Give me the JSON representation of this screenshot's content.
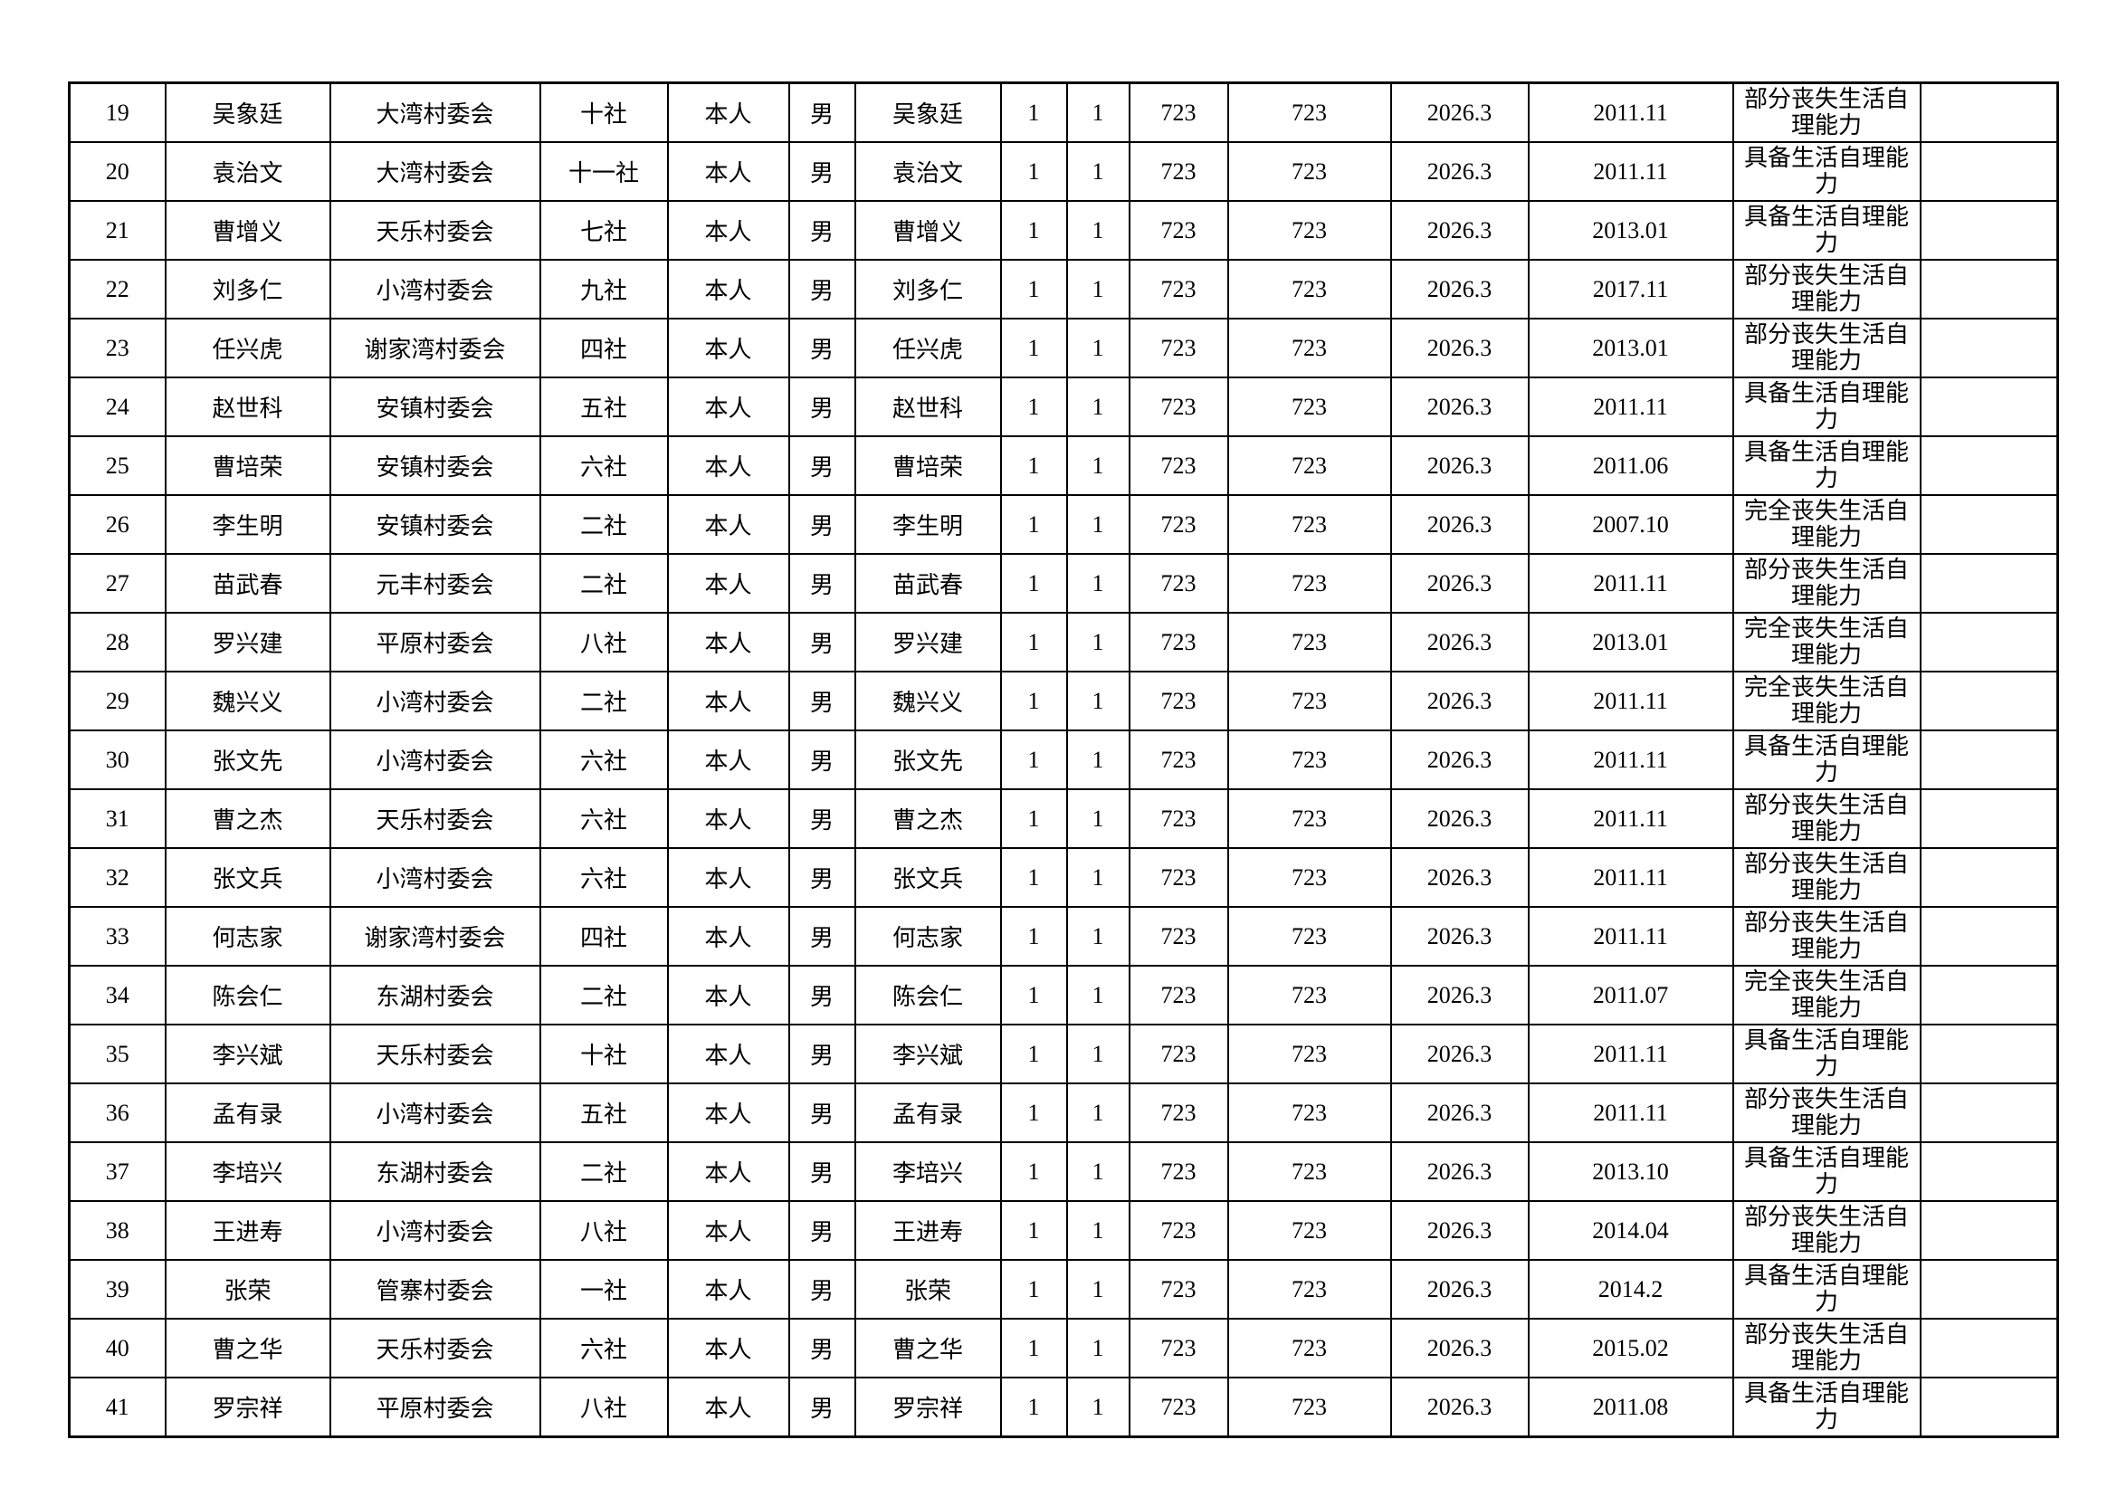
{
  "table": {
    "rows": [
      [
        "19",
        "吴象廷",
        "大湾村委会",
        "十社",
        "本人",
        "男",
        "吴象廷",
        "1",
        "1",
        "723",
        "723",
        "2026.3",
        "2011.11",
        "部分丧失生活自理能力"
      ],
      [
        "20",
        "袁治文",
        "大湾村委会",
        "十一社",
        "本人",
        "男",
        "袁治文",
        "1",
        "1",
        "723",
        "723",
        "2026.3",
        "2011.11",
        "具备生活自理能力"
      ],
      [
        "21",
        "曹增义",
        "天乐村委会",
        "七社",
        "本人",
        "男",
        "曹增义",
        "1",
        "1",
        "723",
        "723",
        "2026.3",
        "2013.01",
        "具备生活自理能力"
      ],
      [
        "22",
        "刘多仁",
        "小湾村委会",
        "九社",
        "本人",
        "男",
        "刘多仁",
        "1",
        "1",
        "723",
        "723",
        "2026.3",
        "2017.11",
        "部分丧失生活自理能力"
      ],
      [
        "23",
        "任兴虎",
        "谢家湾村委会",
        "四社",
        "本人",
        "男",
        "任兴虎",
        "1",
        "1",
        "723",
        "723",
        "2026.3",
        "2013.01",
        "部分丧失生活自理能力"
      ],
      [
        "24",
        "赵世科",
        "安镇村委会",
        "五社",
        "本人",
        "男",
        "赵世科",
        "1",
        "1",
        "723",
        "723",
        "2026.3",
        "2011.11",
        "具备生活自理能力"
      ],
      [
        "25",
        "曹培荣",
        "安镇村委会",
        "六社",
        "本人",
        "男",
        "曹培荣",
        "1",
        "1",
        "723",
        "723",
        "2026.3",
        "2011.06",
        "具备生活自理能力"
      ],
      [
        "26",
        "李生明",
        "安镇村委会",
        "二社",
        "本人",
        "男",
        "李生明",
        "1",
        "1",
        "723",
        "723",
        "2026.3",
        "2007.10",
        "完全丧失生活自理能力"
      ],
      [
        "27",
        "苗武春",
        "元丰村委会",
        "二社",
        "本人",
        "男",
        "苗武春",
        "1",
        "1",
        "723",
        "723",
        "2026.3",
        "2011.11",
        "部分丧失生活自理能力"
      ],
      [
        "28",
        "罗兴建",
        "平原村委会",
        "八社",
        "本人",
        "男",
        "罗兴建",
        "1",
        "1",
        "723",
        "723",
        "2026.3",
        "2013.01",
        "完全丧失生活自理能力"
      ],
      [
        "29",
        "魏兴义",
        "小湾村委会",
        "二社",
        "本人",
        "男",
        "魏兴义",
        "1",
        "1",
        "723",
        "723",
        "2026.3",
        "2011.11",
        "完全丧失生活自理能力"
      ],
      [
        "30",
        "张文先",
        "小湾村委会",
        "六社",
        "本人",
        "男",
        "张文先",
        "1",
        "1",
        "723",
        "723",
        "2026.3",
        "2011.11",
        "具备生活自理能力"
      ],
      [
        "31",
        "曹之杰",
        "天乐村委会",
        "六社",
        "本人",
        "男",
        "曹之杰",
        "1",
        "1",
        "723",
        "723",
        "2026.3",
        "2011.11",
        "部分丧失生活自理能力"
      ],
      [
        "32",
        "张文兵",
        "小湾村委会",
        "六社",
        "本人",
        "男",
        "张文兵",
        "1",
        "1",
        "723",
        "723",
        "2026.3",
        "2011.11",
        "部分丧失生活自理能力"
      ],
      [
        "33",
        "何志家",
        "谢家湾村委会",
        "四社",
        "本人",
        "男",
        "何志家",
        "1",
        "1",
        "723",
        "723",
        "2026.3",
        "2011.11",
        "部分丧失生活自理能力"
      ],
      [
        "34",
        "陈会仁",
        "东湖村委会",
        "二社",
        "本人",
        "男",
        "陈会仁",
        "1",
        "1",
        "723",
        "723",
        "2026.3",
        "2011.07",
        "完全丧失生活自理能力"
      ],
      [
        "35",
        "李兴斌",
        "天乐村委会",
        "十社",
        "本人",
        "男",
        "李兴斌",
        "1",
        "1",
        "723",
        "723",
        "2026.3",
        "2011.11",
        "具备生活自理能力"
      ],
      [
        "36",
        "孟有录",
        "小湾村委会",
        "五社",
        "本人",
        "男",
        "孟有录",
        "1",
        "1",
        "723",
        "723",
        "2026.3",
        "2011.11",
        "部分丧失生活自理能力"
      ],
      [
        "37",
        "李培兴",
        "东湖村委会",
        "二社",
        "本人",
        "男",
        "李培兴",
        "1",
        "1",
        "723",
        "723",
        "2026.3",
        "2013.10",
        "具备生活自理能力"
      ],
      [
        "38",
        "王进寿",
        "小湾村委会",
        "八社",
        "本人",
        "男",
        "王进寿",
        "1",
        "1",
        "723",
        "723",
        "2026.3",
        "2014.04",
        "部分丧失生活自理能力"
      ],
      [
        "39",
        "张荣",
        "管寨村委会",
        "一社",
        "本人",
        "男",
        "张荣",
        "1",
        "1",
        "723",
        "723",
        "2026.3",
        "2014.2",
        "具备生活自理能力"
      ],
      [
        "40",
        "曹之华",
        "天乐村委会",
        "六社",
        "本人",
        "男",
        "曹之华",
        "1",
        "1",
        "723",
        "723",
        "2026.3",
        "2015.02",
        "部分丧失生活自理能力"
      ],
      [
        "41",
        "罗宗祥",
        "平原村委会",
        "八社",
        "本人",
        "男",
        "罗宗祥",
        "1",
        "1",
        "723",
        "723",
        "2026.3",
        "2011.08",
        "具备生活自理能力"
      ]
    ]
  }
}
